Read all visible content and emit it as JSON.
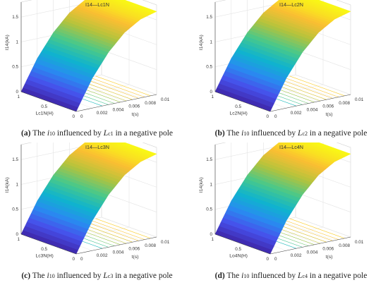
{
  "chart_data": [
    {
      "type": "surface",
      "title": "I14—Lc1N",
      "xlabel": "t(s)",
      "ylabel": "Lc1N(H)",
      "zlabel": "I14(kA)",
      "t_ticks": [
        "0",
        "0.002",
        "0.004",
        "0.006",
        "0.008",
        "0.01"
      ],
      "l_ticks": [
        "0",
        "0.5",
        "1"
      ],
      "z_ticks": [
        "0",
        "0.5",
        "1",
        "1.5"
      ],
      "t_range": [
        0,
        0.01
      ],
      "l_range": [
        0,
        1
      ],
      "z_range": [
        0,
        1.8
      ],
      "surface_z_at_t": {
        "t": [
          0,
          0.002,
          0.004,
          0.006,
          0.008,
          0.01
        ],
        "z": [
          0,
          0.6,
          1.05,
          1.38,
          1.58,
          1.67
        ]
      },
      "colormap": "parula",
      "grid": true,
      "caption": {
        "letter": "(a)",
        "pre": " The ",
        "i_main": "i",
        "i_sub": "10",
        "mid": " influenced by ",
        "l_main": "L",
        "l_sub": "c1",
        "post": " in a negative pole"
      }
    },
    {
      "type": "surface",
      "title": "I14—Lc2N",
      "xlabel": "t(s)",
      "ylabel": "Lc2N(H)",
      "zlabel": "I14(kA)",
      "t_ticks": [
        "0",
        "0.002",
        "0.004",
        "0.006",
        "0.008",
        "0.01"
      ],
      "l_ticks": [
        "0",
        "0.5",
        "1"
      ],
      "z_ticks": [
        "0",
        "0.5",
        "1",
        "1.5"
      ],
      "t_range": [
        0,
        0.01
      ],
      "l_range": [
        0,
        1
      ],
      "z_range": [
        0,
        1.8
      ],
      "surface_z_at_t": {
        "t": [
          0,
          0.002,
          0.004,
          0.006,
          0.008,
          0.01
        ],
        "z": [
          0,
          0.6,
          1.05,
          1.38,
          1.58,
          1.67
        ]
      },
      "colormap": "parula",
      "grid": true,
      "caption": {
        "letter": "(b)",
        "pre": " The ",
        "i_main": "i",
        "i_sub": "10",
        "mid": " influenced by ",
        "l_main": "L",
        "l_sub": "c2",
        "post": " in a negative pole"
      }
    },
    {
      "type": "surface",
      "title": "I14—Lc3N",
      "xlabel": "t(s)",
      "ylabel": "Lc3N(H)",
      "zlabel": "I14(kA)",
      "t_ticks": [
        "0",
        "0.002",
        "0.004",
        "0.006",
        "0.008",
        "0.01"
      ],
      "l_ticks": [
        "0",
        "0.5",
        "1"
      ],
      "z_ticks": [
        "0",
        "0.5",
        "1",
        "1.5"
      ],
      "t_range": [
        0,
        0.01
      ],
      "l_range": [
        0,
        1
      ],
      "z_range": [
        0,
        1.8
      ],
      "surface_z_at_t": {
        "t": [
          0,
          0.002,
          0.004,
          0.006,
          0.008,
          0.01
        ],
        "z": [
          0,
          0.6,
          1.05,
          1.38,
          1.58,
          1.67
        ]
      },
      "colormap": "parula",
      "grid": true,
      "caption": {
        "letter": "(c)",
        "pre": " The ",
        "i_main": "i",
        "i_sub": "10",
        "mid": " influenced by ",
        "l_main": "L",
        "l_sub": "c3",
        "post": " in a negative pole"
      }
    },
    {
      "type": "surface",
      "title": "I14—Lc4N",
      "xlabel": "t(s)",
      "ylabel": "Lo4N(H)",
      "zlabel": "I14(kA)",
      "t_ticks": [
        "0",
        "0.002",
        "0.004",
        "0.006",
        "0.008",
        "0.01"
      ],
      "l_ticks": [
        "0",
        "0.5",
        "1"
      ],
      "z_ticks": [
        "0",
        "0.5",
        "1",
        "1.5"
      ],
      "t_range": [
        0,
        0.01
      ],
      "l_range": [
        0,
        1
      ],
      "z_range": [
        0,
        1.8
      ],
      "surface_z_at_t": {
        "t": [
          0,
          0.002,
          0.004,
          0.006,
          0.008,
          0.01
        ],
        "z": [
          0,
          0.6,
          1.05,
          1.38,
          1.58,
          1.67
        ]
      },
      "colormap": "parula",
      "grid": true,
      "caption": {
        "letter": "(d)",
        "pre": " The ",
        "i_main": "i",
        "i_sub": "10",
        "mid": " influenced by ",
        "l_main": "L",
        "l_sub": "c4",
        "post": " in a negative pole"
      }
    }
  ]
}
